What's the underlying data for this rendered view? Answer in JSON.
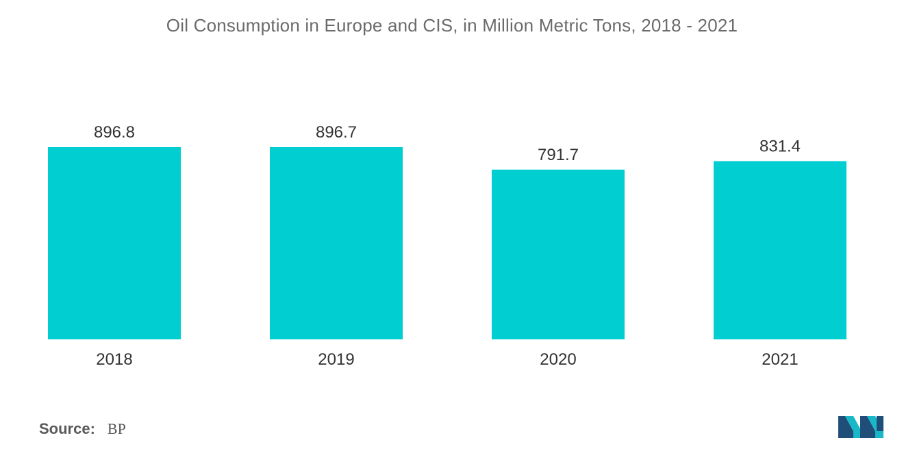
{
  "chart_data": {
    "type": "bar",
    "title": "Oil Consumption in Europe and CIS, in Million Metric Tons, 2018 - 2021",
    "categories": [
      "2018",
      "2019",
      "2020",
      "2021"
    ],
    "values": [
      896.8,
      896.7,
      791.7,
      831.4
    ],
    "value_labels": [
      "896.8",
      "896.7",
      "791.7",
      "831.4"
    ],
    "xlabel": "",
    "ylabel": "",
    "ylim": [
      0,
      896.8
    ],
    "grid": false,
    "legend": "none",
    "bar_color": "#00CED1"
  },
  "footer": {
    "source_label": "Source:",
    "source_value": "BP"
  },
  "logo": {
    "name": "Mordor Intelligence logo",
    "colors": [
      "#1f4e79",
      "#18b8c9"
    ]
  }
}
